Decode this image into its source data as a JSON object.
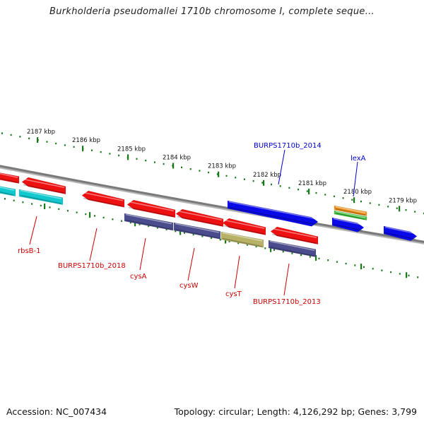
{
  "title": "Burkholderia pseudomallei 1710b chromosome I, complete seque...",
  "footer": {
    "accession": "Accession: NC_007434",
    "topology": "Topology: circular; Length: 4,126,292 bp; Genes: 3,799"
  },
  "colors": {
    "red": "#ee1111",
    "purple": "#4b4c8e",
    "cyan": "#10c9cf",
    "khaki": "#b7b266",
    "blue": "#0a0ae8",
    "orange": "#f0921a",
    "green": "#3dc43d",
    "ticks": "#1a7a1a",
    "backbone": "#808080",
    "red_label": "#cc0000",
    "blue_label": "#0000cc"
  },
  "scale": {
    "unit": "kbp",
    "labels": [
      {
        "kbp": 2187,
        "text": "2187 kbp"
      },
      {
        "kbp": 2186,
        "text": "2186 kbp"
      },
      {
        "kbp": 2185,
        "text": "2185 kbp"
      },
      {
        "kbp": 2184,
        "text": "2184 kbp"
      },
      {
        "kbp": 2183,
        "text": "2183 kbp"
      },
      {
        "kbp": 2182,
        "text": "2182 kbp"
      },
      {
        "kbp": 2181,
        "text": "2181 kbp"
      },
      {
        "kbp": 2180,
        "text": "2180 kbp"
      },
      {
        "kbp": 2179,
        "text": "2179 kbp"
      }
    ]
  },
  "genes": [
    {
      "name": "rbsB-1",
      "color": "red_label",
      "side": "below"
    },
    {
      "name": "BURPS1710b_2018",
      "color": "red_label",
      "side": "below"
    },
    {
      "name": "cysA",
      "color": "red_label",
      "side": "below"
    },
    {
      "name": "cysW",
      "color": "red_label",
      "side": "below"
    },
    {
      "name": "cysT",
      "color": "red_label",
      "side": "below"
    },
    {
      "name": "BURPS1710b_2013",
      "color": "red_label",
      "side": "below"
    },
    {
      "name": "BURPS1710b_2014",
      "color": "blue_label",
      "side": "above"
    },
    {
      "name": "lexA",
      "color": "blue_label",
      "side": "above"
    }
  ]
}
